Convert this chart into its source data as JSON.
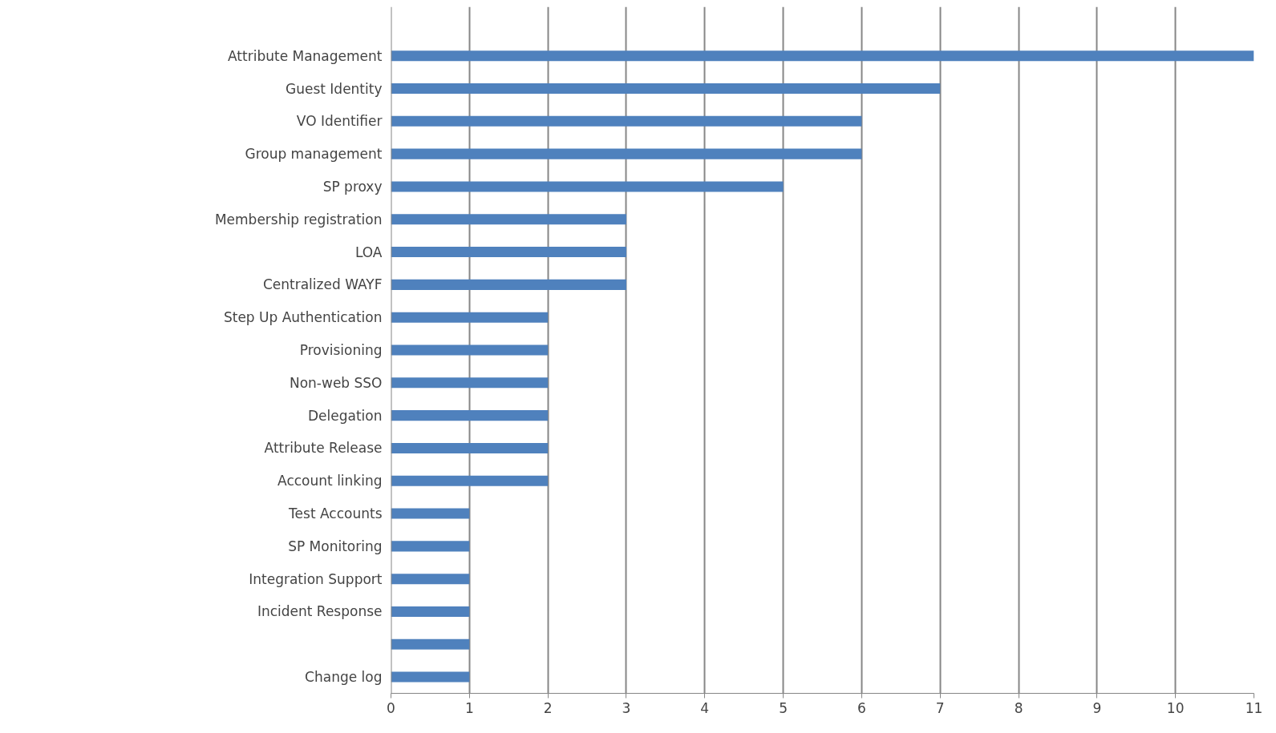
{
  "chart_data": {
    "type": "bar",
    "orientation": "horizontal",
    "categories": [
      "Attribute Management",
      "Guest Identity",
      "VO Identifier",
      "Group management",
      "SP proxy",
      "Membership registration",
      "LOA",
      "Centralized WAYF",
      "Step Up Authentication",
      "Provisioning",
      "Non-web SSO",
      "Delegation",
      "Attribute Release",
      "Account linking",
      "Test Accounts",
      "SP Monitoring",
      "Integration Support",
      "Incident Response",
      null,
      "Change log"
    ],
    "values": [
      11,
      7,
      6,
      6,
      5,
      3,
      3,
      3,
      2,
      2,
      2,
      2,
      2,
      2,
      1,
      1,
      1,
      1,
      1,
      1
    ],
    "color": "#4f81bd",
    "xlim": [
      0,
      11
    ],
    "xticks": [
      0,
      1,
      2,
      3,
      4,
      5,
      6,
      7,
      8,
      9,
      10,
      11
    ],
    "grid": "x"
  }
}
